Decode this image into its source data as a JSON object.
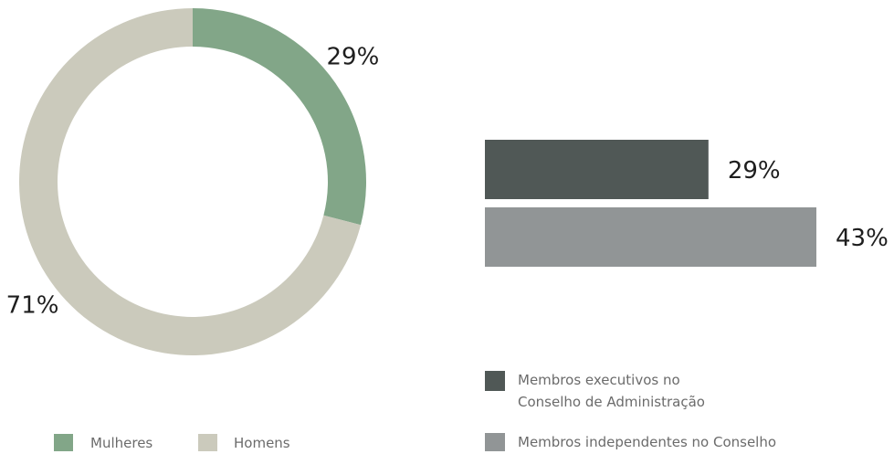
{
  "chart_data": [
    {
      "type": "pie",
      "categories": [
        "Mulheres",
        "Homens"
      ],
      "values": [
        29,
        71
      ],
      "value_labels": [
        "29%",
        "71%"
      ],
      "colors": [
        "#82a688",
        "#cbcabc"
      ],
      "donut": true
    },
    {
      "type": "bar",
      "orientation": "horizontal",
      "series": [
        {
          "name": "Membros executivos no Conselho de Administração",
          "color": "#505856",
          "values": [
            29
          ],
          "value_labels": [
            "29%"
          ]
        },
        {
          "name": "Membros independentes no Conselho",
          "color": "#919596",
          "values": [
            43
          ],
          "value_labels": [
            "43%"
          ]
        }
      ]
    }
  ]
}
